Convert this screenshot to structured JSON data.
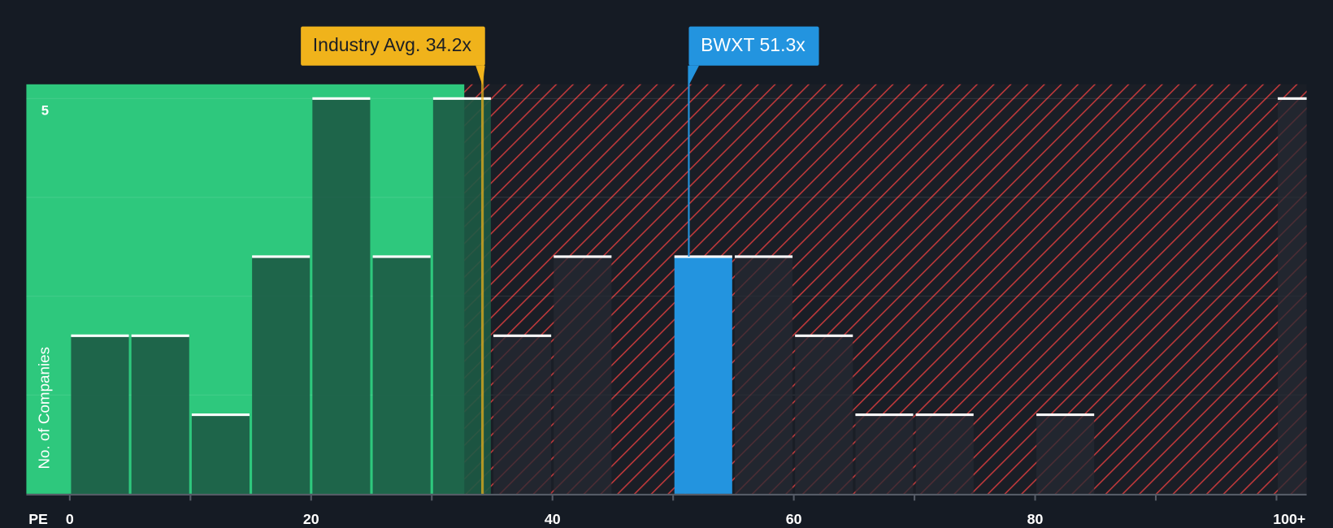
{
  "chart_data": {
    "type": "histogram",
    "x_label": "PE",
    "y_label": "No. of Companies",
    "bins": [
      0,
      5,
      10,
      15,
      20,
      25,
      30,
      35,
      40,
      45,
      50,
      55,
      60,
      65,
      70,
      75,
      80,
      85,
      90,
      95,
      100,
      105
    ],
    "values": [
      2,
      2,
      1,
      3,
      5,
      3,
      5,
      2,
      3,
      0,
      3,
      3,
      2,
      1,
      1,
      0,
      1,
      0,
      0,
      0,
      5
    ],
    "xlim": [
      -3.6,
      102.5
    ],
    "ylim": [
      0,
      5.18
    ],
    "xticks": [
      0,
      20,
      40,
      60,
      80,
      {
        "value": 100,
        "label": "100+"
      }
    ],
    "xminor": [
      10,
      30,
      50,
      70,
      90
    ],
    "yticks": [
      5
    ],
    "ygrid": [
      1.25,
      2.5,
      3.75,
      5
    ],
    "shaded_until": 32.7,
    "highlight_bin": 10,
    "colors": {
      "good_region": "#2ec87d",
      "bar_good": "#1d5a45",
      "bar_bad": "#262a33",
      "highlight": "#2394df",
      "hatch": "#c0393b"
    },
    "annotations": [
      {
        "label": "Industry Avg. 34.2x",
        "x": 34.2,
        "color": "#f0b31b",
        "text_color": "#1c1f24"
      },
      {
        "label": "BWXT 51.3x",
        "x": 51.3,
        "color": "#2394df",
        "text_color": "#ffffff"
      }
    ]
  }
}
